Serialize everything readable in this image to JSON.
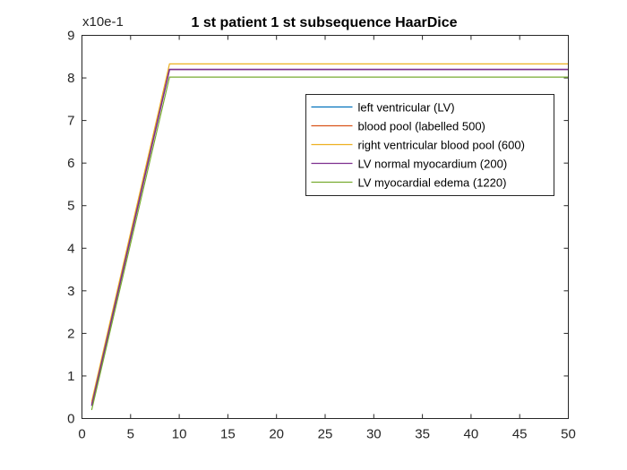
{
  "chart_data": {
    "type": "line",
    "title": "1 st patient 1 st subsequence HaarDice",
    "xlabel": "",
    "ylabel": "",
    "y_exponent_label": "x10e-1",
    "xlim": [
      0,
      50
    ],
    "ylim": [
      0,
      9
    ],
    "xticks": [
      0,
      5,
      10,
      15,
      20,
      25,
      30,
      35,
      40,
      45,
      50
    ],
    "yticks": [
      0,
      1,
      2,
      3,
      4,
      5,
      6,
      7,
      8,
      9
    ],
    "grid": false,
    "legend_position": "top-right",
    "series": [
      {
        "name": "left ventricular (LV)",
        "color": "#0072BD",
        "points": [
          [
            1,
            0.3
          ],
          [
            9,
            8.2
          ],
          [
            50,
            8.2
          ]
        ]
      },
      {
        "name": "blood pool (labelled 500)",
        "color": "#D95319",
        "points": [
          [
            1,
            0.35
          ],
          [
            9,
            8.2
          ],
          [
            50,
            8.2
          ]
        ]
      },
      {
        "name": "right ventricular blood pool (600)",
        "color": "#EDB120",
        "points": [
          [
            1,
            0.4
          ],
          [
            9,
            8.33
          ],
          [
            50,
            8.33
          ]
        ]
      },
      {
        "name": "LV normal myocardium (200)",
        "color": "#7E2F8E",
        "points": [
          [
            1,
            0.3
          ],
          [
            9,
            8.2
          ],
          [
            50,
            8.2
          ]
        ]
      },
      {
        "name": "LV myocardial edema (1220)",
        "color": "#77AC30",
        "points": [
          [
            1,
            0.2
          ],
          [
            9,
            8.02
          ],
          [
            50,
            8.02
          ]
        ]
      }
    ]
  }
}
